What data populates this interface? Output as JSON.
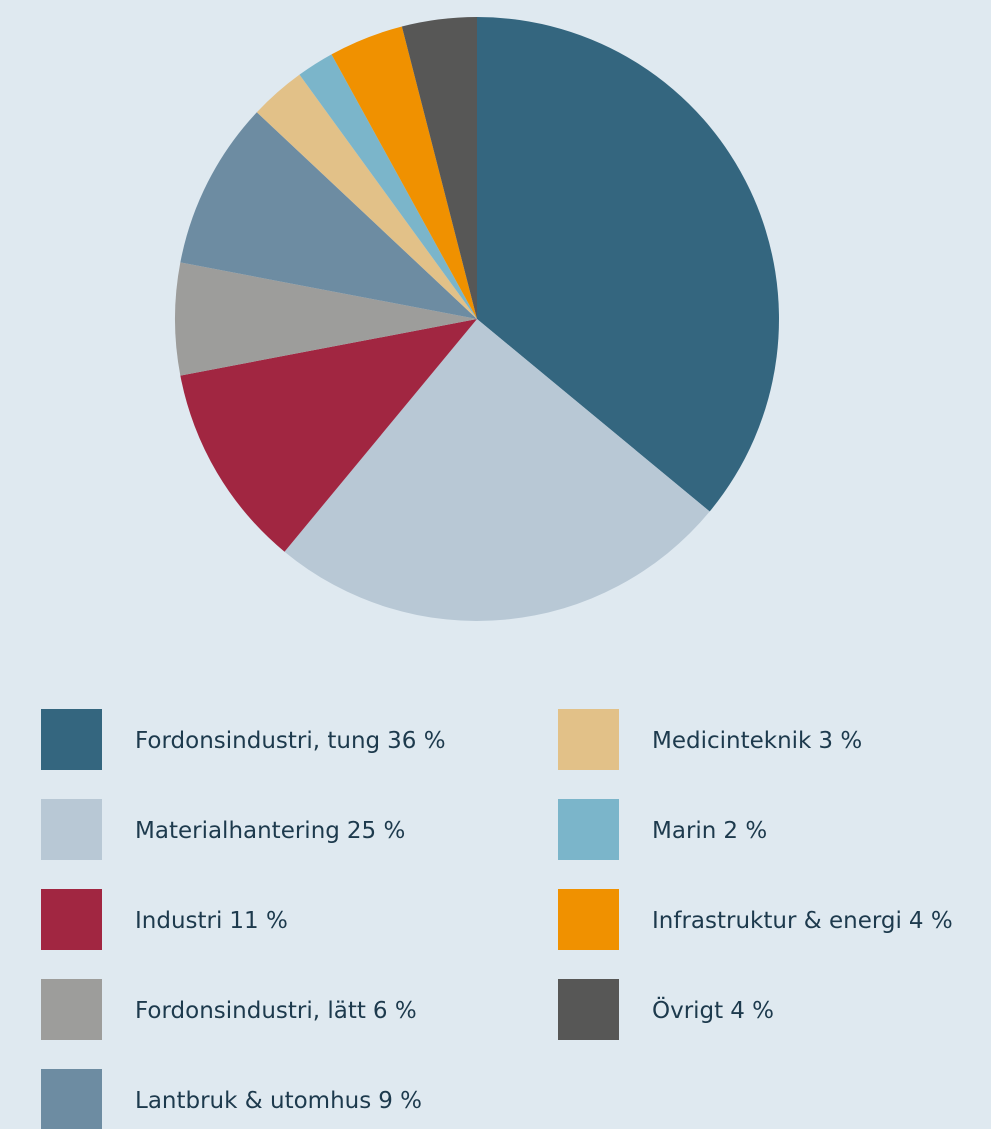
{
  "chart_data": {
    "type": "pie",
    "categories": [
      "Fordonsindustri, tung",
      "Materialhantering",
      "Industri",
      "Fordonsindustri, lätt",
      "Lantbruk & utomhus",
      "Medicinteknik",
      "Marin",
      "Infrastruktur & energi",
      "Övrigt"
    ],
    "values": [
      36,
      25,
      11,
      6,
      9,
      3,
      2,
      4,
      4
    ],
    "value_labels": [
      "36 %",
      "25 %",
      "11 %",
      "6 %",
      "9 %",
      "3 %",
      "2 %",
      "4 %",
      "4 %"
    ],
    "colors": [
      "#34667f",
      "#b8c8d5",
      "#a12641",
      "#9d9d9b",
      "#6d8ca2",
      "#e2c188",
      "#7bb5ca",
      "#f09100",
      "#575756"
    ]
  }
}
